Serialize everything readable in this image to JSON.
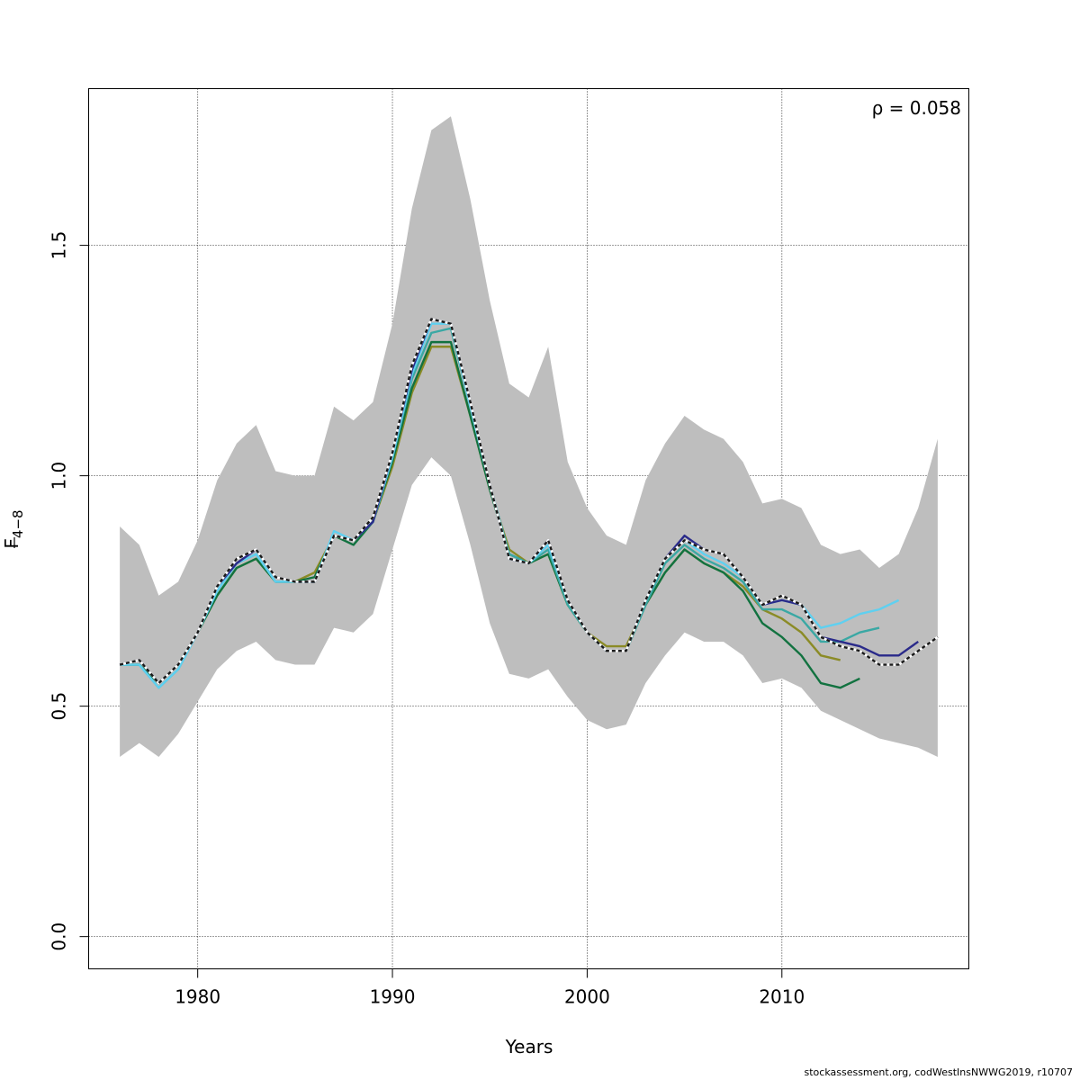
{
  "chart_data": {
    "type": "line",
    "title": "",
    "xlabel": "Years",
    "ylabel_main": "F",
    "ylabel_sub": "4−8",
    "xlim": [
      1974.4,
      2019.6
    ],
    "ylim": [
      -0.07,
      1.84
    ],
    "x_ticks": [
      1980,
      1990,
      2000,
      2010
    ],
    "x_tick_labels": [
      "1980",
      "1990",
      "2000",
      "2010"
    ],
    "y_ticks": [
      0.0,
      0.5,
      1.0,
      1.5
    ],
    "y_tick_labels": [
      "0.0",
      "0.5",
      "1.0",
      "1.5"
    ],
    "grid": true,
    "annotation": "ρ = 0.058",
    "band_color": "#bebebe",
    "band": {
      "x": [
        1976,
        1977,
        1978,
        1979,
        1980,
        1981,
        1982,
        1983,
        1984,
        1985,
        1986,
        1987,
        1988,
        1989,
        1990,
        1991,
        1992,
        1993,
        1994,
        1995,
        1996,
        1997,
        1998,
        1999,
        2000,
        2001,
        2002,
        2003,
        2004,
        2005,
        2006,
        2007,
        2008,
        2009,
        2010,
        2011,
        2012,
        2013,
        2014,
        2015,
        2016,
        2017,
        2018
      ],
      "upper": [
        0.89,
        0.85,
        0.74,
        0.77,
        0.86,
        0.99,
        1.07,
        1.11,
        1.01,
        1.0,
        1.0,
        1.15,
        1.12,
        1.16,
        1.33,
        1.58,
        1.75,
        1.78,
        1.6,
        1.38,
        1.2,
        1.17,
        1.28,
        1.03,
        0.93,
        0.87,
        0.85,
        0.99,
        1.07,
        1.13,
        1.1,
        1.08,
        1.03,
        0.94,
        0.95,
        0.93,
        0.85,
        0.83,
        0.84,
        0.8,
        0.83,
        0.93,
        1.08
      ],
      "lower": [
        0.39,
        0.42,
        0.39,
        0.44,
        0.51,
        0.58,
        0.62,
        0.64,
        0.6,
        0.59,
        0.59,
        0.67,
        0.66,
        0.7,
        0.84,
        0.98,
        1.04,
        1.0,
        0.85,
        0.68,
        0.57,
        0.56,
        0.58,
        0.52,
        0.47,
        0.45,
        0.46,
        0.55,
        0.61,
        0.66,
        0.64,
        0.64,
        0.61,
        0.55,
        0.56,
        0.54,
        0.49,
        0.47,
        0.45,
        0.43,
        0.42,
        0.41,
        0.39
      ]
    },
    "x_common": [
      1976,
      1977,
      1978,
      1979,
      1980,
      1981,
      1982,
      1983,
      1984,
      1985,
      1986,
      1987,
      1988,
      1989,
      1990,
      1991,
      1992,
      1993,
      1994,
      1995,
      1996,
      1997,
      1998,
      1999,
      2000,
      2001,
      2002,
      2003,
      2004,
      2005,
      2006,
      2007,
      2008,
      2009,
      2010,
      2011,
      2012,
      2013,
      2014,
      2015,
      2016,
      2017,
      2018
    ],
    "series": [
      {
        "color": "#8b8b26",
        "dashed": false,
        "values": [
          0.59,
          0.59,
          0.55,
          0.59,
          0.66,
          0.74,
          0.8,
          0.82,
          0.77,
          0.77,
          0.79,
          0.87,
          0.86,
          0.9,
          1.02,
          1.18,
          1.28,
          1.28,
          1.13,
          0.97,
          0.84,
          0.81,
          0.83,
          0.72,
          0.66,
          0.63,
          0.63,
          0.72,
          0.79,
          0.84,
          0.81,
          0.79,
          0.76,
          0.71,
          0.69,
          0.66,
          0.61,
          0.6
        ]
      },
      {
        "color": "#127240",
        "dashed": false,
        "values": [
          0.59,
          0.59,
          0.55,
          0.59,
          0.66,
          0.74,
          0.8,
          0.82,
          0.77,
          0.77,
          0.78,
          0.87,
          0.85,
          0.9,
          1.03,
          1.19,
          1.29,
          1.29,
          1.13,
          0.97,
          0.83,
          0.81,
          0.83,
          0.72,
          0.66,
          0.62,
          0.62,
          0.72,
          0.79,
          0.84,
          0.81,
          0.79,
          0.75,
          0.68,
          0.65,
          0.61,
          0.55,
          0.54,
          0.56
        ]
      },
      {
        "color": "#3aa8a4",
        "dashed": false,
        "values": [
          0.59,
          0.59,
          0.54,
          0.58,
          0.66,
          0.75,
          0.81,
          0.83,
          0.77,
          0.77,
          0.77,
          0.87,
          0.86,
          0.9,
          1.04,
          1.21,
          1.31,
          1.32,
          1.15,
          0.98,
          0.83,
          0.81,
          0.84,
          0.72,
          0.66,
          0.62,
          0.62,
          0.72,
          0.81,
          0.85,
          0.82,
          0.8,
          0.77,
          0.71,
          0.71,
          0.69,
          0.64,
          0.64,
          0.66,
          0.67
        ]
      },
      {
        "color": "#5fd0f0",
        "dashed": false,
        "values": [
          0.59,
          0.59,
          0.54,
          0.58,
          0.66,
          0.75,
          0.81,
          0.83,
          0.77,
          0.77,
          0.77,
          0.88,
          0.86,
          0.9,
          1.04,
          1.22,
          1.33,
          1.33,
          1.15,
          0.98,
          0.82,
          0.81,
          0.85,
          0.73,
          0.66,
          0.62,
          0.62,
          0.73,
          0.82,
          0.86,
          0.83,
          0.81,
          0.78,
          0.72,
          0.73,
          0.72,
          0.67,
          0.68,
          0.7,
          0.71,
          0.73
        ]
      },
      {
        "color": "#2a2a8a",
        "dashed": false,
        "values": [
          0.59,
          0.6,
          0.55,
          0.59,
          0.66,
          0.76,
          0.81,
          0.84,
          0.78,
          0.77,
          0.77,
          0.87,
          0.86,
          0.9,
          1.05,
          1.23,
          1.34,
          1.33,
          1.16,
          0.98,
          0.82,
          0.81,
          0.86,
          0.73,
          0.66,
          0.62,
          0.62,
          0.73,
          0.82,
          0.87,
          0.84,
          0.83,
          0.78,
          0.72,
          0.73,
          0.72,
          0.65,
          0.64,
          0.63,
          0.61,
          0.61,
          0.64
        ]
      },
      {
        "color": "#1a1a1a",
        "dashed": true,
        "values": [
          0.59,
          0.6,
          0.55,
          0.59,
          0.66,
          0.76,
          0.82,
          0.84,
          0.78,
          0.77,
          0.77,
          0.87,
          0.86,
          0.91,
          1.05,
          1.24,
          1.34,
          1.33,
          1.16,
          0.98,
          0.82,
          0.81,
          0.86,
          0.73,
          0.66,
          0.62,
          0.62,
          0.73,
          0.82,
          0.86,
          0.84,
          0.83,
          0.78,
          0.72,
          0.74,
          0.72,
          0.65,
          0.63,
          0.62,
          0.59,
          0.59,
          0.62,
          0.65
        ]
      }
    ]
  },
  "footer_text": "stockassessment.org, codWestInsNWWG2019, r10707"
}
